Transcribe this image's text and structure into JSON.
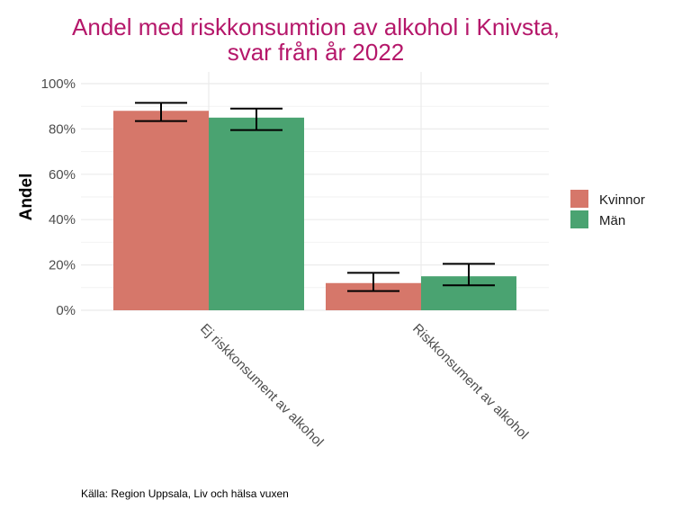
{
  "chart_data": {
    "type": "bar",
    "title_lines": [
      "Andel med riskkonsumtion av alkohol i Knivsta,",
      "svar från år 2022"
    ],
    "xlabel": "",
    "ylabel": "Andel",
    "categories": [
      "Ej riskkonsument av alkohol",
      "Riskkonsument av alkohol"
    ],
    "yticks": [
      "0%",
      "20%",
      "40%",
      "60%",
      "80%",
      "100%"
    ],
    "ylim": [
      0,
      100
    ],
    "series": [
      {
        "name": "Kvinnor",
        "color": "#d6776a",
        "values": [
          88,
          12
        ],
        "error_low": [
          83.5,
          8.5
        ],
        "error_high": [
          91.5,
          16.5
        ]
      },
      {
        "name": "Män",
        "color": "#4aa371",
        "values": [
          85,
          15
        ],
        "error_low": [
          79.5,
          11
        ],
        "error_high": [
          89,
          20.5
        ]
      }
    ],
    "grid": true,
    "legend_position": "right",
    "caption": "Källa: Region Uppsala, Liv och hälsa vuxen"
  }
}
